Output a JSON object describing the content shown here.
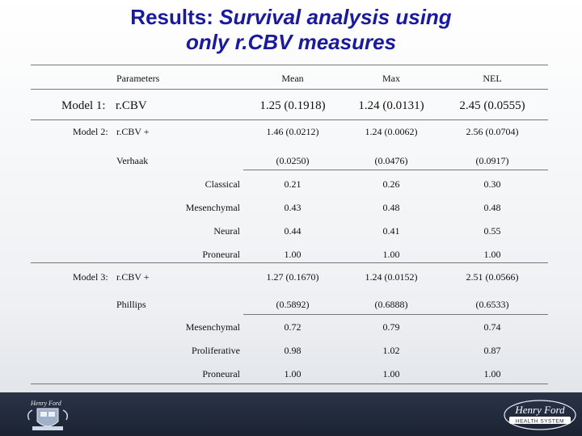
{
  "title": {
    "line1_plain": "Results: ",
    "line1_italic": "Survival analysis using",
    "line2_italic": "only r.CBV measures"
  },
  "table": {
    "headers": {
      "parameters": "Parameters",
      "mean": "Mean",
      "max": "Max",
      "nel": "NEL"
    },
    "model1": {
      "label": "Model 1:",
      "param": "r.CBV",
      "mean": "1.25 (0.1918)",
      "max": "1.24 (0.0131)",
      "nel": "2.45 (0.0555)"
    },
    "model2": {
      "label": "Model 2:",
      "param": "r.CBV +",
      "mean": "1.46 (0.0212)",
      "max": "1.24 (0.0062)",
      "nel": "2.56 (0.0704)",
      "sub_param": "Verhaak",
      "sub_mean": "(0.0250)",
      "sub_max": "(0.0476)",
      "sub_nel": "(0.0917)",
      "rows": [
        {
          "name": "Classical",
          "mean": "0.21",
          "max": "0.26",
          "nel": "0.30"
        },
        {
          "name": "Mesenchymal",
          "mean": "0.43",
          "max": "0.48",
          "nel": "0.48"
        },
        {
          "name": "Neural",
          "mean": "0.44",
          "max": "0.41",
          "nel": "0.55"
        },
        {
          "name": "Proneural",
          "mean": "1.00",
          "max": "1.00",
          "nel": "1.00"
        }
      ]
    },
    "model3": {
      "label": "Model 3:",
      "param": "r.CBV +",
      "mean": "1.27 (0.1670)",
      "max": "1.24 (0.0152)",
      "nel": "2.51 (0.0566)",
      "sub_param": "Phillips",
      "sub_mean": "(0.5892)",
      "sub_max": "(0.6888)",
      "sub_nel": "(0.6533)",
      "rows": [
        {
          "name": "Mesenchymal",
          "mean": "0.72",
          "max": "0.79",
          "nel": "0.74"
        },
        {
          "name": "Proliferative",
          "mean": "0.98",
          "max": "1.02",
          "nel": "0.87"
        },
        {
          "name": "Proneural",
          "mean": "1.00",
          "max": "1.00",
          "nel": "1.00"
        }
      ]
    }
  },
  "footer": {
    "logo_text_1": "Henry Ford",
    "logo_text_2": "HEALTH SYSTEM"
  },
  "colors": {
    "title": "#1a1a9e",
    "footer": "#1f2839"
  }
}
